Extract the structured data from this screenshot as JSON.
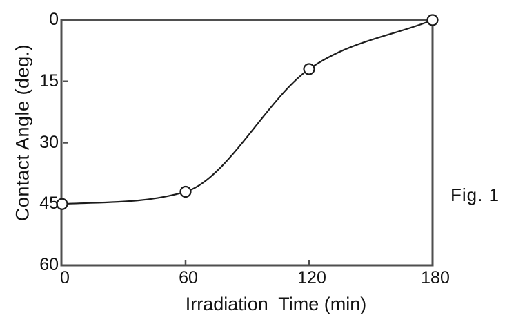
{
  "figure": {
    "caption": "Fig. 1"
  },
  "chart_data": {
    "type": "line",
    "title": "",
    "xlabel": "Irradiation  Time (min)",
    "ylabel": "Contact Angle (deg.)",
    "x": [
      0,
      60,
      120,
      180
    ],
    "series": [
      {
        "name": "contact-angle",
        "values": [
          45,
          42,
          12,
          0
        ]
      }
    ],
    "xticks": [
      0,
      60,
      120,
      180
    ],
    "yticks": [
      0,
      15,
      30,
      45,
      60
    ],
    "xlim": [
      0,
      180
    ],
    "ylim": [
      0,
      60
    ],
    "y_axis_inverted": true,
    "grid": false,
    "legend": false,
    "marker": "open-circle",
    "colors": {
      "line": "#1c1c1c",
      "marker_fill": "#ffffff",
      "marker_stroke": "#1c1c1c",
      "frame": "#4f4f4f",
      "text": "#111111",
      "background": "#ffffff"
    }
  }
}
